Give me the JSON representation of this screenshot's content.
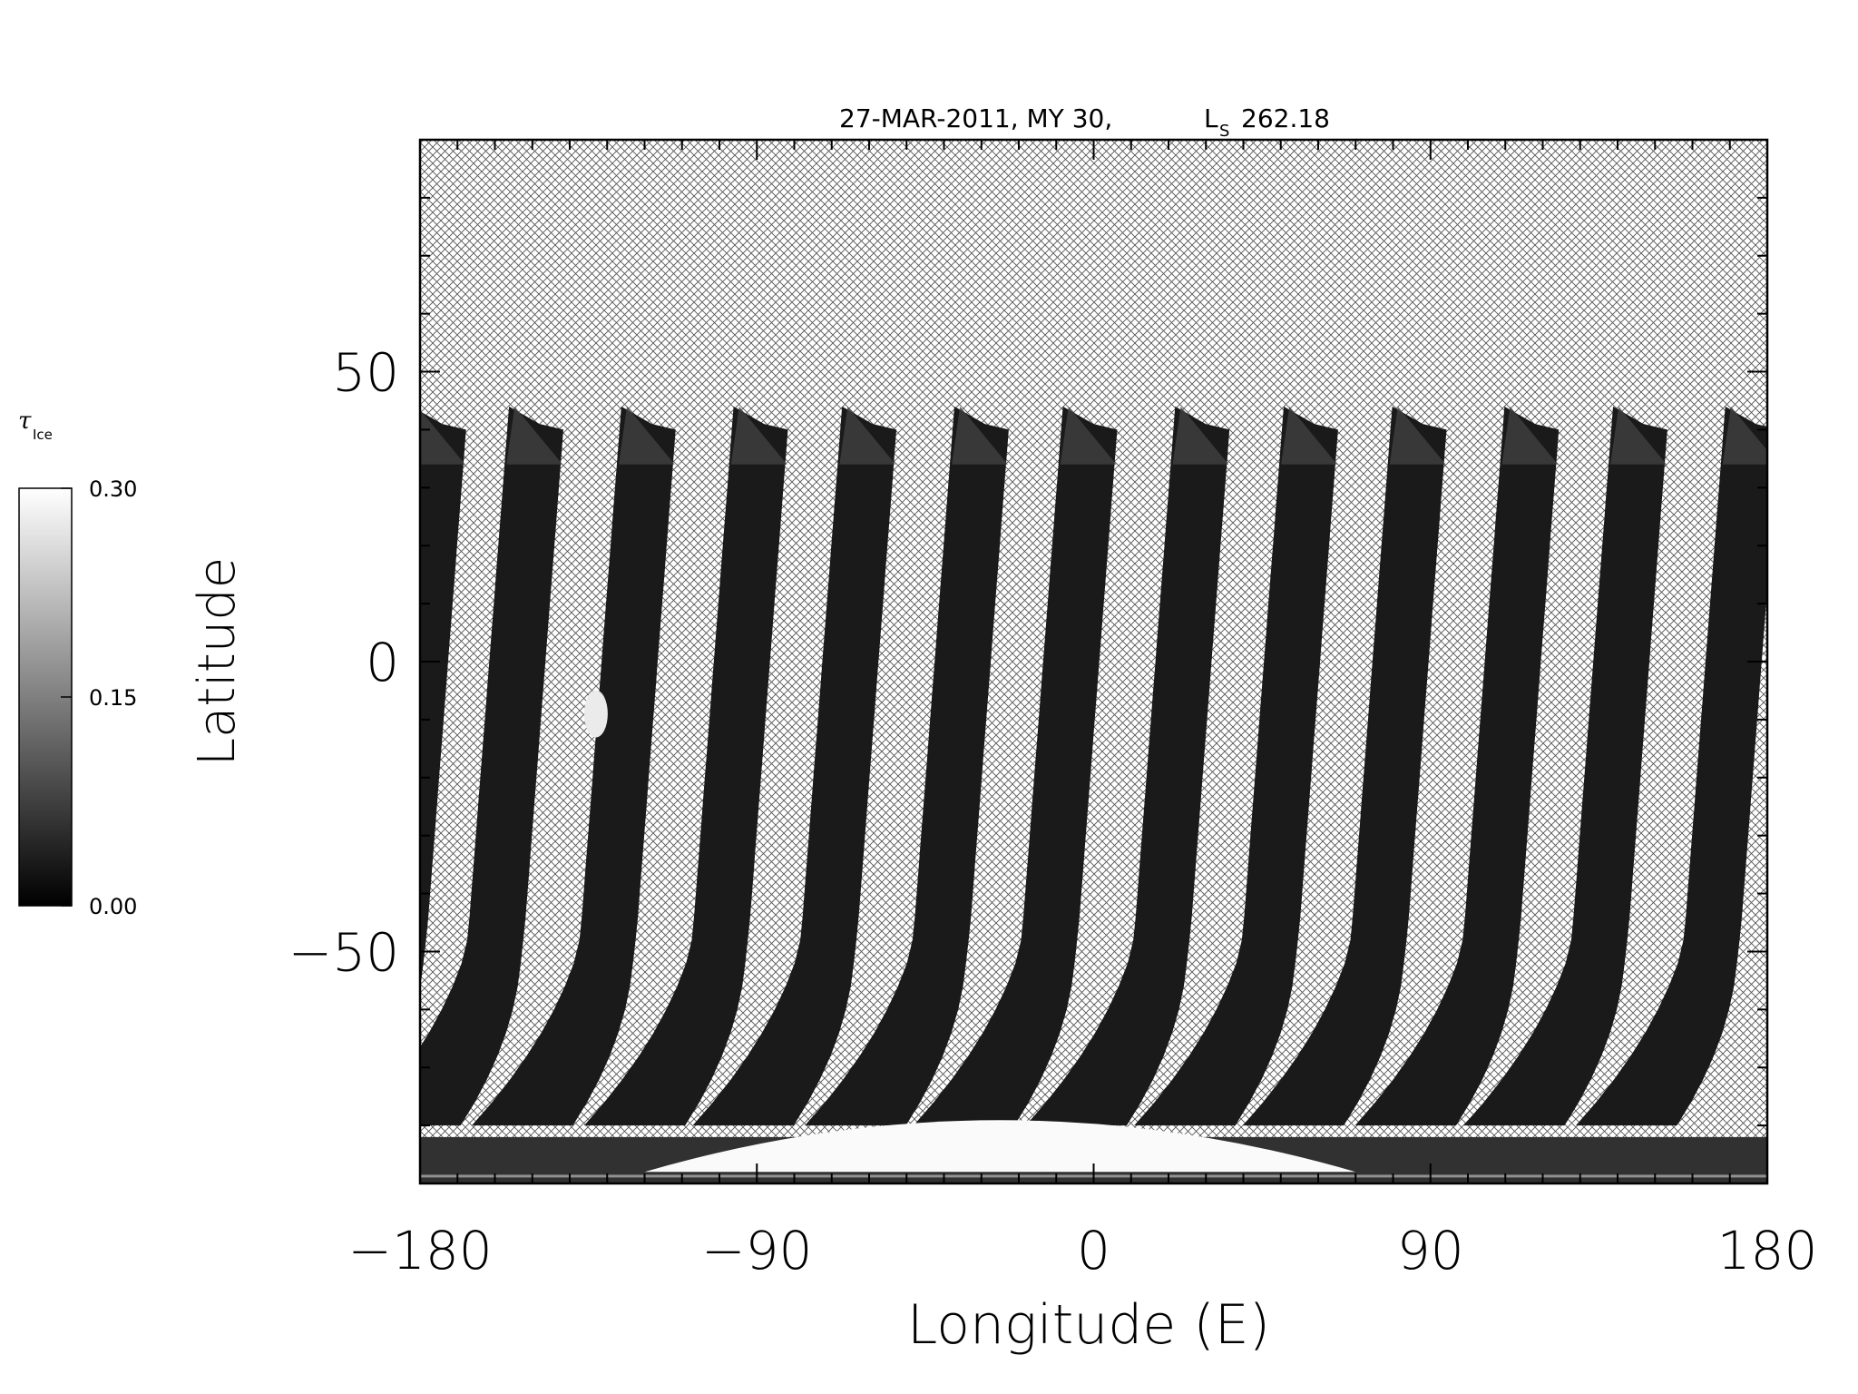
{
  "chart_data": {
    "type": "heatmap",
    "title": "27-MAR-2011, MY 30,",
    "title_ls_symbol": "L",
    "title_ls_subscript": "S",
    "title_ls_value": "262.18",
    "xlabel": "Longitude (E)",
    "ylabel": "Latitude",
    "xlim": [
      -180,
      180
    ],
    "ylim": [
      -90,
      90
    ],
    "xticks": [
      -180,
      -90,
      0,
      90,
      180
    ],
    "xtick_labels": [
      "−180",
      "−90",
      "0",
      "90",
      "180"
    ],
    "yticks": [
      -50,
      0,
      50
    ],
    "ytick_labels": [
      "−50",
      "0",
      "50"
    ],
    "colorbar": {
      "label": "τ",
      "label_subscript": "Ice",
      "range": [
        0.0,
        0.3
      ],
      "ticks": [
        0.3,
        0.15,
        0.0
      ],
      "tick_labels": [
        "0.30",
        "0.15",
        "0.00"
      ],
      "colormap": "grayscale"
    },
    "no_data_fill": "crosshatch",
    "swaths": {
      "count": 13,
      "center_longitudes_at_equator": [
        -180,
        -154,
        -124,
        -94,
        -65,
        -35,
        -6,
        24,
        53,
        82,
        112,
        141,
        171
      ],
      "north_edge_latitude": 44,
      "value": 0.01
    },
    "polar_cap": {
      "lat_range": [
        -90,
        -73
      ],
      "lon_range": [
        -120,
        70
      ],
      "value": 0.3
    },
    "features": [
      {
        "name": "bright cloud patch",
        "lon": -133,
        "lat": -9,
        "value": 0.28
      }
    ],
    "grid": false
  }
}
